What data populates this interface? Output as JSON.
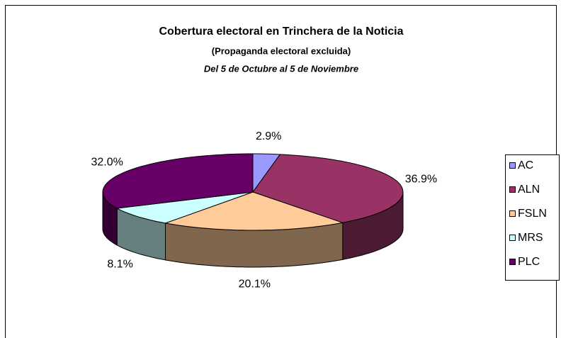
{
  "chart_data": {
    "type": "pie3d",
    "title": "Cobertura electoral en Trinchera de la Noticia",
    "subtitle": "(Propaganda electoral excluida)",
    "period": "Del 5 de Octubre al 5 de Noviembre",
    "categories": [
      "AC",
      "ALN",
      "FSLN",
      "MRS",
      "PLC"
    ],
    "values": [
      2.9,
      36.9,
      20.1,
      8.1,
      32.0
    ],
    "value_labels": [
      "2.9%",
      "36.9%",
      "20.1%",
      "8.1%",
      "32.0%"
    ],
    "colors": [
      "#9999ff",
      "#993366",
      "#ffcc99",
      "#ccffff",
      "#660066"
    ],
    "legend": "right"
  }
}
